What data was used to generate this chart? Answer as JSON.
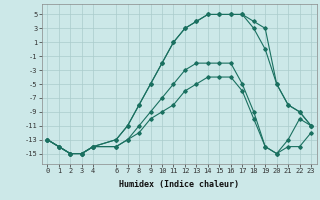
{
  "xlabel": "Humidex (Indice chaleur)",
  "background_color": "#cce8e8",
  "grid_color": "#aacccc",
  "line_color": "#1a7060",
  "xlim": [
    -0.5,
    23.5
  ],
  "ylim": [
    -16.5,
    6.5
  ],
  "xtick_vals": [
    0,
    1,
    2,
    3,
    4,
    6,
    7,
    8,
    9,
    10,
    11,
    12,
    13,
    14,
    15,
    16,
    17,
    18,
    19,
    20,
    21,
    22,
    23
  ],
  "ytick_vals": [
    5,
    3,
    1,
    -1,
    -3,
    -5,
    -7,
    -9,
    -11,
    -13,
    -15
  ],
  "curves": [
    {
      "x": [
        0,
        1,
        2,
        3,
        4,
        6,
        7,
        8,
        9,
        10,
        11,
        12,
        13,
        14,
        15,
        16,
        17,
        18,
        19,
        20,
        21,
        22,
        23
      ],
      "y": [
        -13,
        -14,
        -15,
        -15,
        -14,
        -14,
        -13,
        -12,
        -10,
        -9,
        -8,
        -6,
        -5,
        -4,
        -4,
        -4,
        -6,
        -10,
        -14,
        -15,
        -14,
        -14,
        -12
      ]
    },
    {
      "x": [
        0,
        1,
        2,
        3,
        4,
        6,
        7,
        8,
        9,
        10,
        11,
        12,
        13,
        14,
        15,
        16,
        17,
        18,
        19,
        20,
        21,
        22,
        23
      ],
      "y": [
        -13,
        -14,
        -15,
        -15,
        -14,
        -14,
        -13,
        -11,
        -9,
        -7,
        -5,
        -3,
        -2,
        -2,
        -2,
        -2,
        -5,
        -9,
        -14,
        -15,
        -13,
        -10,
        -11
      ]
    },
    {
      "x": [
        0,
        1,
        2,
        3,
        4,
        6,
        7,
        8,
        9,
        10,
        11,
        12,
        13,
        14,
        15,
        16,
        17,
        18,
        19,
        20,
        21,
        22,
        23
      ],
      "y": [
        -13,
        -14,
        -15,
        -15,
        -14,
        -13,
        -11,
        -8,
        -5,
        -2,
        1,
        3,
        4,
        5,
        5,
        5,
        5,
        4,
        3,
        -5,
        -8,
        -9,
        -11
      ]
    },
    {
      "x": [
        0,
        1,
        2,
        3,
        4,
        6,
        7,
        8,
        9,
        10,
        11,
        12,
        13,
        14,
        15,
        16,
        17,
        18,
        19,
        20,
        21,
        22,
        23
      ],
      "y": [
        -13,
        -14,
        -15,
        -15,
        -14,
        -13,
        -11,
        -8,
        -5,
        -2,
        1,
        3,
        4,
        5,
        5,
        5,
        5,
        3,
        0,
        -5,
        -8,
        -9,
        -11
      ]
    }
  ]
}
